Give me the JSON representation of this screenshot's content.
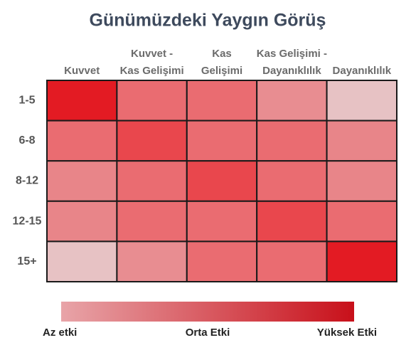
{
  "chart_data": {
    "type": "heatmap",
    "title": "Günümüzdeki Yaygın Görüş",
    "columns": [
      [
        "Kuvvet"
      ],
      [
        "Kuvvet -",
        "Kas Gelişimi"
      ],
      [
        "Kas",
        "Gelişimi"
      ],
      [
        "Kas Gelişimi -",
        "Dayanıklılık"
      ],
      [
        "Dayanıklılık"
      ]
    ],
    "rows": [
      "1-5",
      "6-8",
      "8-12",
      "12-15",
      "15+"
    ],
    "values": [
      [
        100,
        60,
        60,
        40,
        10
      ],
      [
        60,
        80,
        60,
        60,
        45
      ],
      [
        45,
        60,
        80,
        60,
        45
      ],
      [
        45,
        60,
        60,
        80,
        60
      ],
      [
        10,
        40,
        60,
        60,
        100
      ]
    ],
    "zlim": [
      0,
      100
    ],
    "colorscale": [
      "#e8d6d7",
      "#e6a3a7",
      "#e97e82",
      "#eb5258",
      "#e31b23"
    ],
    "colorbar_colors": [
      "#e8a4a8",
      "#c8101a"
    ],
    "colorbar_labels": [
      "Az etki",
      "Orta Etki",
      "Yüksek Etki"
    ]
  }
}
